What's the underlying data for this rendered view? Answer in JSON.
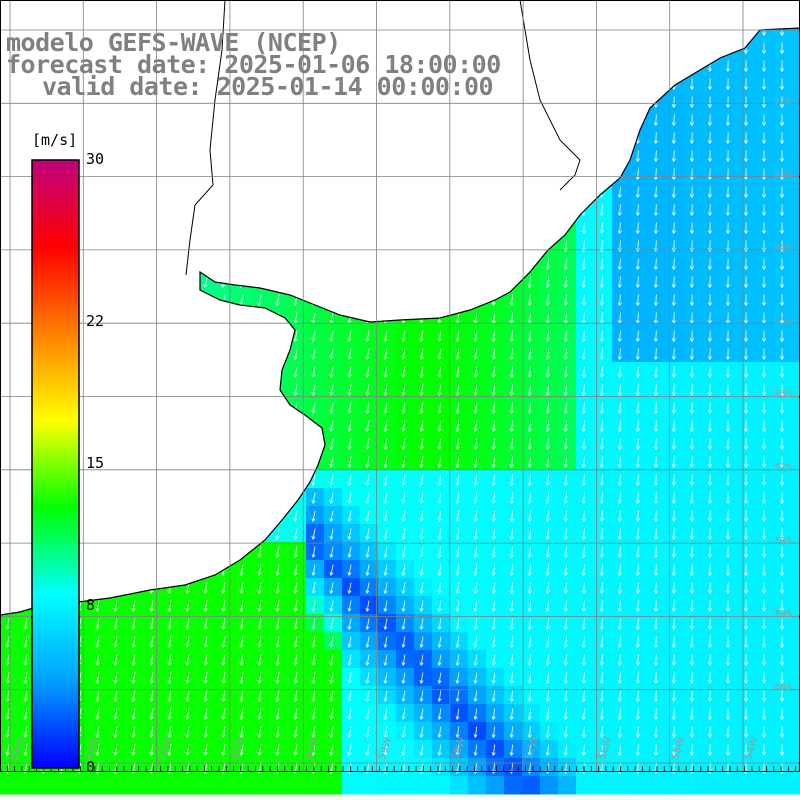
{
  "header": {
    "model": "modelo GEFS-WAVE (NCEP)",
    "forecast": "forecast date: 2025-01-06 18:00:00",
    "valid": "valid date: 2025-01-14 00:00:00"
  },
  "colorbar": {
    "unit": "[m/s]",
    "ticks": [
      {
        "label": "30",
        "value": 30
      },
      {
        "label": "22",
        "value": 22
      },
      {
        "label": "15",
        "value": 15
      },
      {
        "label": "8",
        "value": 8
      },
      {
        "label": "0",
        "value": 0
      }
    ],
    "range": [
      0,
      30
    ],
    "colors": [
      "#0000ff",
      "#00a0ff",
      "#00ffff",
      "#00ff00",
      "#ffff00",
      "#ff8000",
      "#ff0000",
      "#c00080"
    ]
  },
  "map": {
    "land_color": "#ffffff",
    "coast_color": "#000000",
    "grid_color": "#808080",
    "arrow_color": "#ffffff",
    "lon_labels": [
      "64W",
      "63W",
      "62W",
      "61W",
      "60W",
      "59W",
      "58W",
      "57W",
      "56W",
      "55W",
      "54W",
      "53W"
    ],
    "lat_labels": [
      "32S",
      "33S",
      "34S",
      "35S",
      "36S",
      "37S",
      "38S",
      "39S",
      "40S"
    ]
  },
  "chart_data": {
    "type": "heatmap",
    "title": "modelo GEFS-WAVE (NCEP)",
    "variable_unit": "m/s",
    "color_range": [
      0,
      30
    ],
    "x_range": [
      "64W",
      "53W"
    ],
    "y_range": [
      "31S",
      "41S"
    ],
    "fields": {
      "speed_land_shelf_ms": 13,
      "speed_offshore_ms": 8,
      "speed_min_band_ms": 2,
      "predominant_direction": "from NNE"
    }
  }
}
